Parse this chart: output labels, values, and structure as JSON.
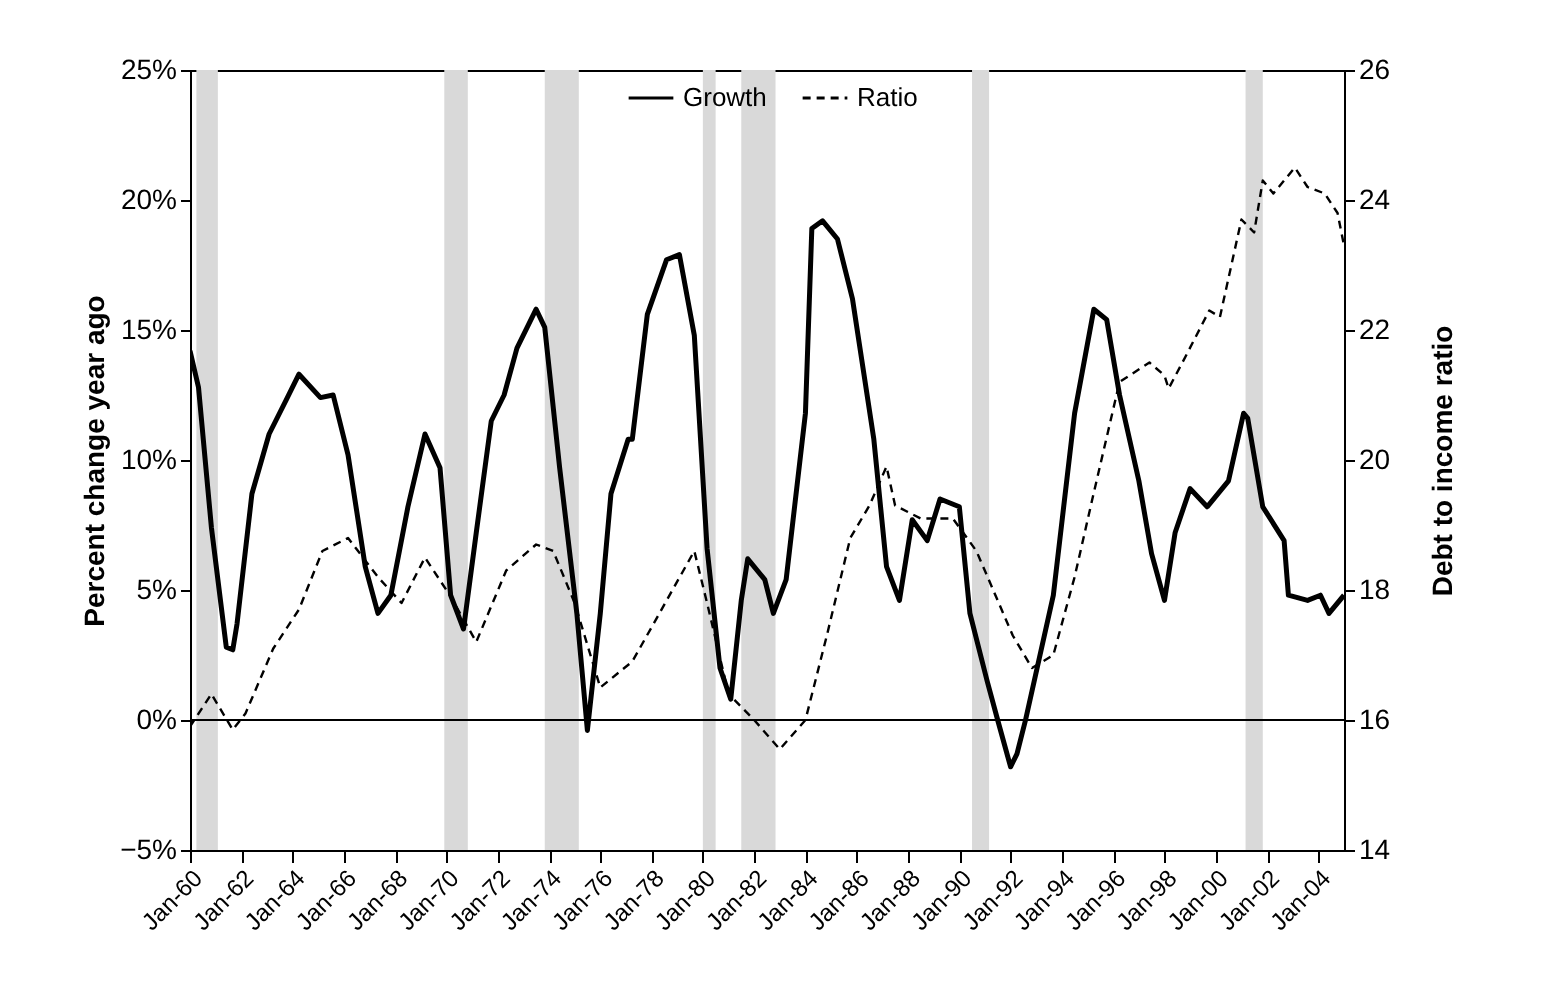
{
  "chart_data": {
    "type": "line",
    "ylabel": "Percent change year ago",
    "y2label": "Debt to income ratio",
    "legend": "top",
    "grid": false,
    "xlim": [
      "1960-01",
      "2005-01"
    ],
    "xticks": [
      {
        "value": "1960-01",
        "label": "Jan-60"
      },
      {
        "value": "1962-01",
        "label": "Jan-62"
      },
      {
        "value": "1964-01",
        "label": "Jan-64"
      },
      {
        "value": "1966-01",
        "label": "Jan-66"
      },
      {
        "value": "1968-01",
        "label": "Jan-68"
      },
      {
        "value": "1970-01",
        "label": "Jan-70"
      },
      {
        "value": "1972-01",
        "label": "Jan-72"
      },
      {
        "value": "1974-01",
        "label": "Jan-74"
      },
      {
        "value": "1976-01",
        "label": "Jan-76"
      },
      {
        "value": "1978-01",
        "label": "Jan-78"
      },
      {
        "value": "1980-01",
        "label": "Jan-80"
      },
      {
        "value": "1982-01",
        "label": "Jan-82"
      },
      {
        "value": "1984-01",
        "label": "Jan-84"
      },
      {
        "value": "1986-01",
        "label": "Jan-86"
      },
      {
        "value": "1988-01",
        "label": "Jan-88"
      },
      {
        "value": "1990-01",
        "label": "Jan-90"
      },
      {
        "value": "1992-01",
        "label": "Jan-92"
      },
      {
        "value": "1994-01",
        "label": "Jan-94"
      },
      {
        "value": "1996-01",
        "label": "Jan-96"
      },
      {
        "value": "1998-01",
        "label": "Jan-98"
      },
      {
        "value": "2000-01",
        "label": "Jan-00"
      },
      {
        "value": "2002-01",
        "label": "Jan-02"
      },
      {
        "value": "2004-01",
        "label": "Jan-04"
      }
    ],
    "ylim": [
      -5,
      25
    ],
    "yticks": [
      {
        "value": -5,
        "label": "−5%"
      },
      {
        "value": 0,
        "label": "0%"
      },
      {
        "value": 5,
        "label": "5%"
      },
      {
        "value": 10,
        "label": "10%"
      },
      {
        "value": 15,
        "label": "15%"
      },
      {
        "value": 20,
        "label": "20%"
      },
      {
        "value": 25,
        "label": "25%"
      }
    ],
    "y2lim": [
      14,
      26
    ],
    "y2ticks": [
      14,
      16,
      18,
      20,
      22,
      24,
      26
    ],
    "ref_lines": [
      {
        "axis": "y",
        "value": 0,
        "color": "#000000"
      }
    ],
    "bands": [
      {
        "axis": "x",
        "from": "1960-04",
        "to": "1961-02",
        "color": "#d9d9d9"
      },
      {
        "axis": "x",
        "from": "1969-12",
        "to": "1970-11",
        "color": "#d9d9d9"
      },
      {
        "axis": "x",
        "from": "1973-11",
        "to": "1975-03",
        "color": "#d9d9d9"
      },
      {
        "axis": "x",
        "from": "1980-01",
        "to": "1980-07",
        "color": "#d9d9d9"
      },
      {
        "axis": "x",
        "from": "1981-07",
        "to": "1982-11",
        "color": "#d9d9d9"
      },
      {
        "axis": "x",
        "from": "1990-07",
        "to": "1991-03",
        "color": "#d9d9d9"
      },
      {
        "axis": "x",
        "from": "2001-03",
        "to": "2001-11",
        "color": "#d9d9d9"
      }
    ],
    "series": [
      {
        "name": "Growth",
        "color": "#000000",
        "line_style": "solid",
        "x": [
          "1960-01",
          "1960-05",
          "1960-11",
          "1961-06",
          "1961-09",
          "1961-11",
          "1962-06",
          "1963-02",
          "1963-10",
          "1964-04",
          "1965-02",
          "1965-08",
          "1966-03",
          "1966-11",
          "1967-05",
          "1967-11",
          "1968-07",
          "1969-03",
          "1969-10",
          "1970-03",
          "1970-09",
          "1971-03",
          "1971-10",
          "1972-04",
          "1972-10",
          "1973-07",
          "1973-11",
          "1974-06",
          "1975-02",
          "1975-07",
          "1976-01",
          "1976-06",
          "1977-02",
          "1977-04",
          "1977-11",
          "1978-08",
          "1979-02",
          "1979-09",
          "1980-03",
          "1980-09",
          "1981-02",
          "1981-07",
          "1981-10",
          "1982-06",
          "1982-10",
          "1983-04",
          "1984-01",
          "1984-04",
          "1984-09",
          "1985-04",
          "1985-11",
          "1986-09",
          "1987-03",
          "1987-09",
          "1988-03",
          "1988-10",
          "1989-04",
          "1990-01",
          "1990-06",
          "1991-02",
          "1991-07",
          "1992-01",
          "1992-04",
          "1992-08",
          "1993-09",
          "1994-07",
          "1995-04",
          "1995-10",
          "1996-04",
          "1997-01",
          "1997-07",
          "1998-01",
          "1998-06",
          "1999-01",
          "1999-09",
          "2000-07",
          "2001-02",
          "2001-04",
          "2001-11",
          "2002-09",
          "2002-11",
          "2003-08",
          "2004-02",
          "2004-06",
          "2005-01"
        ],
        "values": [
          14.2,
          12.8,
          7.4,
          2.8,
          2.7,
          3.7,
          8.7,
          11.0,
          12.3,
          13.3,
          12.4,
          12.5,
          10.2,
          5.9,
          4.1,
          4.8,
          8.2,
          11.0,
          9.7,
          4.8,
          3.5,
          7.2,
          11.5,
          12.5,
          14.3,
          15.8,
          15.1,
          9.7,
          4.1,
          -0.4,
          4.1,
          8.7,
          10.8,
          10.8,
          15.6,
          17.7,
          17.9,
          14.8,
          6.6,
          2.0,
          0.8,
          4.6,
          6.2,
          5.4,
          4.1,
          5.4,
          11.8,
          18.9,
          19.2,
          18.5,
          16.2,
          10.8,
          5.9,
          4.6,
          7.7,
          6.9,
          8.5,
          8.2,
          4.1,
          1.5,
          0,
          -1.8,
          -1.3,
          0,
          4.8,
          11.8,
          15.8,
          15.4,
          12.5,
          9.2,
          6.4,
          4.6,
          7.2,
          8.9,
          8.2,
          9.2,
          11.8,
          11.6,
          8.2,
          6.9,
          4.8,
          4.6,
          4.8,
          4.1,
          4.8
        ]
      },
      {
        "name": "Ratio",
        "color": "#000000",
        "line_style": "dashed",
        "axis": "y2",
        "x": [
          "1960-01",
          "1960-11",
          "1961-09",
          "1962-03",
          "1963-04",
          "1964-04",
          "1965-03",
          "1966-03",
          "1967-05",
          "1968-04",
          "1969-03",
          "1970-03",
          "1971-03",
          "1972-05",
          "1973-07",
          "1974-03",
          "1975-01",
          "1976-01",
          "1977-04",
          "1978-04",
          "1979-09",
          "1980-03",
          "1981-01",
          "1982-01",
          "1983-01",
          "1984-01",
          "1984-11",
          "1985-10",
          "1986-07",
          "1987-03",
          "1987-07",
          "1988-07",
          "1989-10",
          "1990-09",
          "1992-02",
          "1992-11",
          "1993-09",
          "1994-07",
          "1995-04",
          "1996-04",
          "1997-06",
          "1998-01",
          "1998-03",
          "1998-11",
          "1999-10",
          "2000-03",
          "2001-01",
          "2001-07",
          "2001-11",
          "2002-04",
          "2003-02",
          "2003-08",
          "2004-04",
          "2004-10",
          "2005-01"
        ],
        "values": [
          15.9,
          16.4,
          15.85,
          16.1,
          17.1,
          17.7,
          18.6,
          18.8,
          18.2,
          17.8,
          18.5,
          17.9,
          17.2,
          18.3,
          18.7,
          18.6,
          17.8,
          16.5,
          16.9,
          17.6,
          18.6,
          17.8,
          16.4,
          16.0,
          15.55,
          16.0,
          17.3,
          18.8,
          19.3,
          19.9,
          19.3,
          19.1,
          19.1,
          18.6,
          17.3,
          16.8,
          17.0,
          18.2,
          19.5,
          21.2,
          21.5,
          21.3,
          21.1,
          21.6,
          22.3,
          22.2,
          23.7,
          23.5,
          24.3,
          24.1,
          24.5,
          24.2,
          24.1,
          23.8,
          23.3
        ]
      }
    ]
  }
}
